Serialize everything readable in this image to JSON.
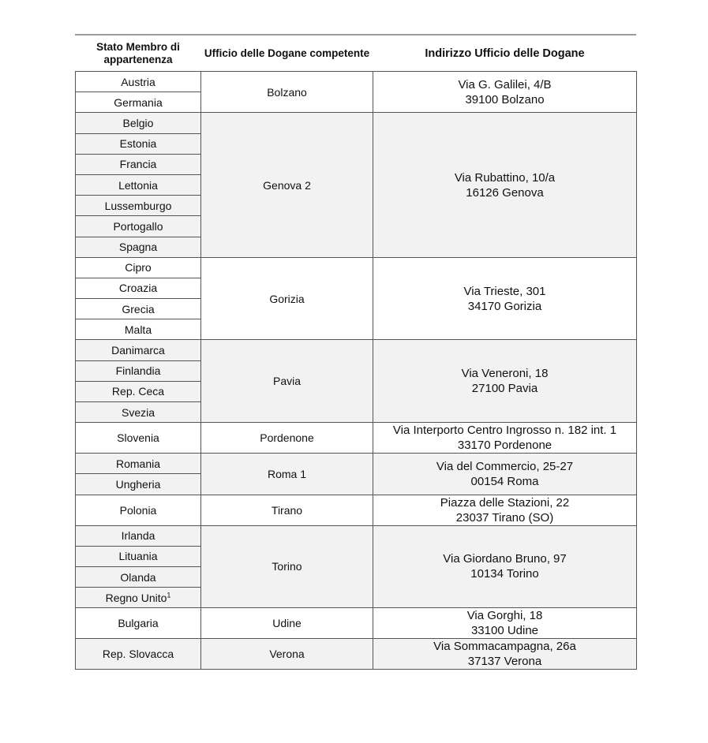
{
  "headers": [
    "Stato Membro di appartenenza",
    "Ufficio delle Dogane competente",
    "Indirizzo Ufficio delle Dogane"
  ],
  "colors": {
    "shaded_row": "#f2f2f2",
    "border": "#555555"
  },
  "groups": [
    {
      "countries": [
        "Austria",
        "Germania"
      ],
      "office": "Bolzano",
      "address": [
        "Via G. Galilei, 4/B",
        "39100 Bolzano"
      ]
    },
    {
      "countries": [
        "Belgio",
        "Estonia",
        "Francia",
        "Lettonia",
        "Lussemburgo",
        "Portogallo",
        "Spagna"
      ],
      "office": "Genova 2",
      "address": [
        "Via Rubattino, 10/a",
        "16126 Genova"
      ]
    },
    {
      "countries": [
        "Cipro",
        "Croazia",
        "Grecia",
        "Malta"
      ],
      "office": "Gorizia",
      "address": [
        "Via Trieste, 301",
        "34170 Gorizia"
      ]
    },
    {
      "countries": [
        "Danimarca",
        "Finlandia",
        "Rep. Ceca",
        "Svezia"
      ],
      "office": "Pavia",
      "address": [
        "Via Veneroni, 18",
        "27100 Pavia"
      ]
    },
    {
      "countries": [
        "Slovenia"
      ],
      "office": "Pordenone",
      "address": [
        "Via Interporto Centro Ingrosso n. 182 int. 1",
        "33170 Pordenone"
      ]
    },
    {
      "countries": [
        "Romania",
        "Ungheria"
      ],
      "office": "Roma 1",
      "address": [
        "Via del Commercio, 25-27",
        "00154 Roma"
      ]
    },
    {
      "countries": [
        "Polonia"
      ],
      "office": "Tirano",
      "address": [
        "Piazza delle Stazioni, 22",
        "23037 Tirano (SO)"
      ]
    },
    {
      "countries": [
        "Irlanda",
        "Lituania",
        "Olanda",
        "Regno Unito"
      ],
      "footnotes": {
        "Regno Unito": "1"
      },
      "office": "Torino",
      "address": [
        "Via Giordano Bruno, 97",
        "10134 Torino"
      ]
    },
    {
      "countries": [
        "Bulgaria"
      ],
      "office": "Udine",
      "address": [
        "Via Gorghi, 18",
        "33100 Udine"
      ]
    },
    {
      "countries": [
        "Rep. Slovacca"
      ],
      "office": "Verona",
      "address": [
        "Via Sommacampagna, 26a",
        "37137 Verona"
      ]
    }
  ]
}
